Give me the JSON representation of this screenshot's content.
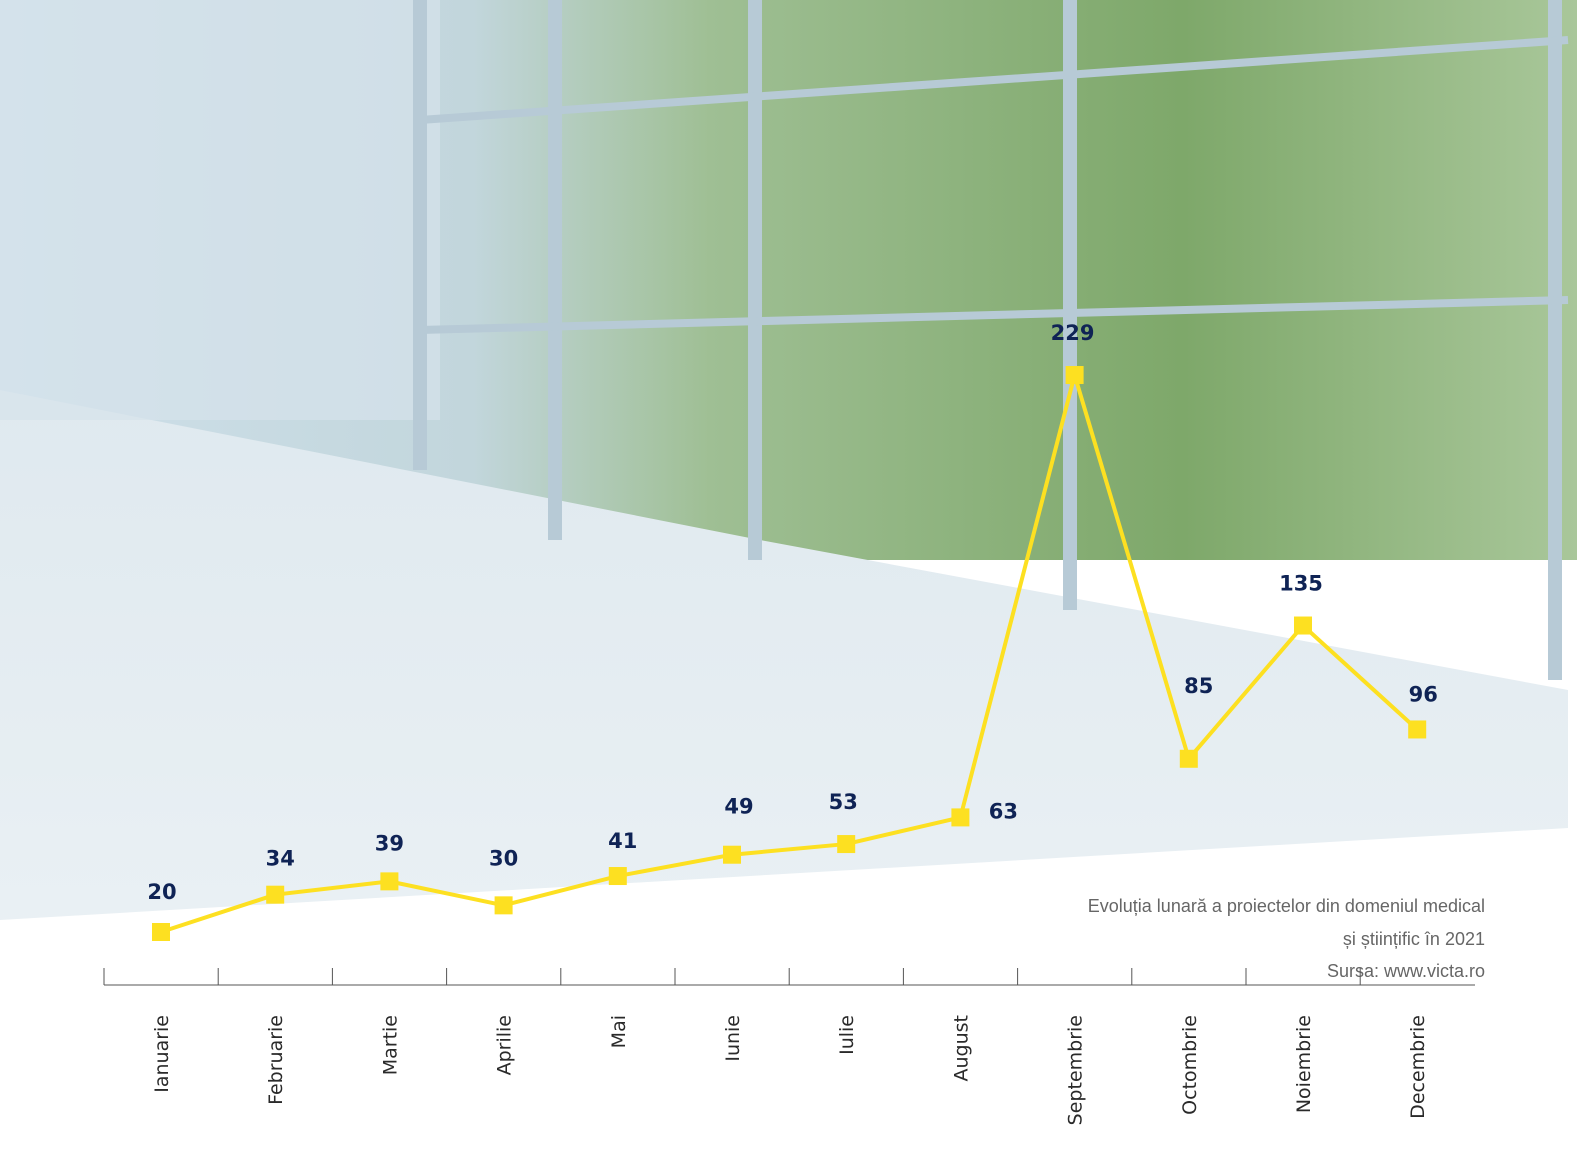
{
  "chart_data": {
    "type": "line",
    "categories": [
      "Ianuarie",
      "Februarie",
      "Martie",
      "Aprilie",
      "Mai",
      "Iunie",
      "Iulie",
      "August",
      "Septembrie",
      "Octombrie",
      "Noiembrie",
      "Decembrie"
    ],
    "series": [
      {
        "color": "#fde021",
        "values": [
          20,
          34,
          39,
          30,
          41,
          49,
          53,
          63,
          229,
          85,
          135,
          96
        ]
      }
    ],
    "caption": [
      "Evoluția lunară a proiectelor din domeniul medical",
      "și științific în 2021",
      "Sursa: www.victa.ro"
    ]
  }
}
